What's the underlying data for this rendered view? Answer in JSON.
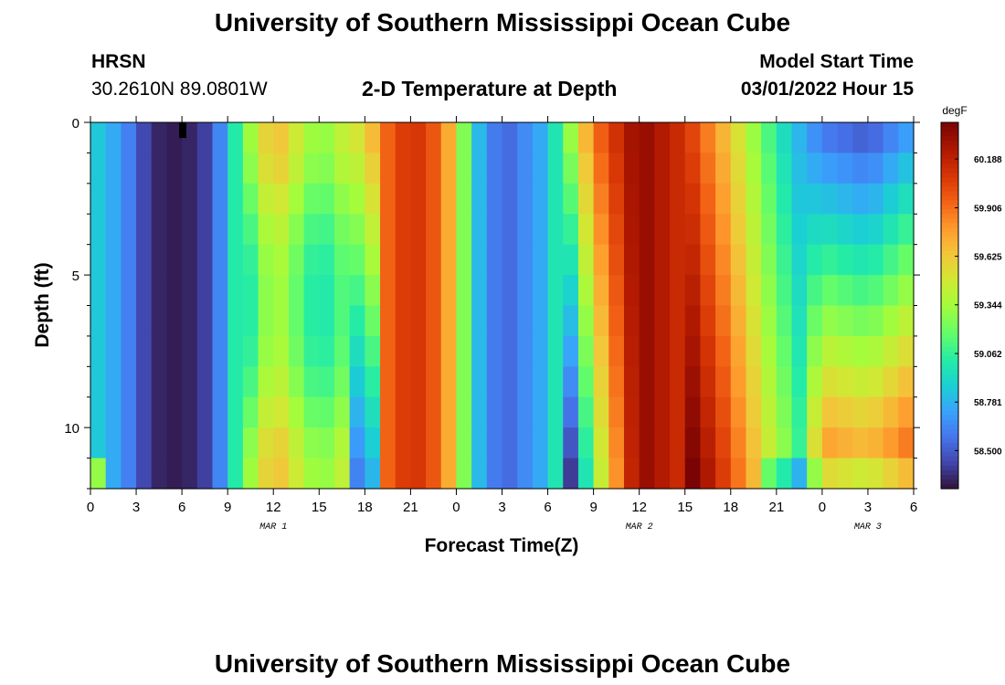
{
  "header": {
    "title": "University of Southern Mississippi Ocean Cube",
    "station": "HRSN",
    "coords": "30.2610N  89.0801W",
    "subtitle": "2-D Temperature at Depth",
    "model_label": "Model Start Time",
    "model_time": "03/01/2022 Hour 15"
  },
  "footer": {
    "title": "University of Southern Mississippi Ocean Cube"
  },
  "chart_data": {
    "type": "heatmap",
    "title": "2-D Temperature at Depth",
    "xlabel": "Forecast Time(Z)",
    "ylabel": "Depth (ft)",
    "x_tick_labels": [
      "0",
      "3",
      "6",
      "9",
      "12",
      "15",
      "18",
      "21",
      "0",
      "3",
      "6",
      "9",
      "12",
      "15",
      "18",
      "21",
      "0",
      "3",
      "6"
    ],
    "x_range_hours": [
      0,
      54
    ],
    "y_range_ft": [
      0,
      12
    ],
    "y_tick_labels": [
      "0",
      "5",
      "10"
    ],
    "date_labels": [
      {
        "label": "MAR 1",
        "hour": 12
      },
      {
        "label": "MAR 2",
        "hour": 36
      },
      {
        "label": "MAR 3",
        "hour": 51
      }
    ],
    "colorbar": {
      "unit": "degF",
      "range": [
        58.28,
        60.4
      ],
      "ticks": [
        "60.188",
        "59.906",
        "59.625",
        "59.344",
        "59.062",
        "58.781",
        "58.500"
      ]
    },
    "depth_levels_ft": [
      0.5,
      1.5,
      2.5,
      3.5,
      4.5,
      5.5,
      6.5,
      7.5,
      8.5,
      9.5,
      10.5,
      11.5
    ],
    "temperature_profile_surface": [
      {
        "hour": 0,
        "value": 58.9
      },
      {
        "hour": 2,
        "value": 58.7
      },
      {
        "hour": 4,
        "value": 58.35
      },
      {
        "hour": 6,
        "value": 58.3
      },
      {
        "hour": 8,
        "value": 58.45
      },
      {
        "hour": 10,
        "value": 59.2
      },
      {
        "hour": 12,
        "value": 59.7
      },
      {
        "hour": 15,
        "value": 59.25
      },
      {
        "hour": 18,
        "value": 59.6
      },
      {
        "hour": 20,
        "value": 60.05
      },
      {
        "hour": 22,
        "value": 60.1
      },
      {
        "hour": 24,
        "value": 59.6
      },
      {
        "hour": 25,
        "value": 58.9
      },
      {
        "hour": 27,
        "value": 58.5
      },
      {
        "hour": 30,
        "value": 58.8
      },
      {
        "hour": 33,
        "value": 59.9
      },
      {
        "hour": 36,
        "value": 60.35
      },
      {
        "hour": 39,
        "value": 60.1
      },
      {
        "hour": 42,
        "value": 59.6
      },
      {
        "hour": 45,
        "value": 59.0
      },
      {
        "hour": 48,
        "value": 58.55
      },
      {
        "hour": 51,
        "value": 58.45
      },
      {
        "hour": 54,
        "value": 58.7
      }
    ]
  }
}
